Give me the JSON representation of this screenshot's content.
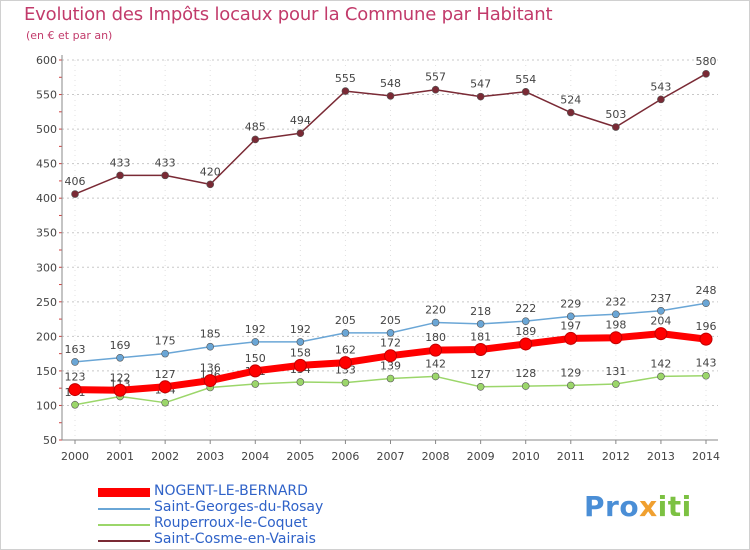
{
  "chart_data": {
    "type": "line",
    "title": "Evolution des Impôts locaux pour la Commune par Habitant",
    "subtitle": "(en € et par an)",
    "xlabel": "",
    "ylabel": "",
    "ylim": [
      50,
      600
    ],
    "yticks": [
      50,
      100,
      150,
      200,
      250,
      300,
      350,
      400,
      450,
      500,
      550,
      600
    ],
    "grid": "horizontal dashed",
    "x": [
      "2000",
      "2001",
      "2002",
      "2003",
      "2004",
      "2005",
      "2006",
      "2007",
      "2008",
      "2009",
      "2010",
      "2011",
      "2012",
      "2013",
      "2014"
    ],
    "series": [
      {
        "name": "Saint-Cosme-en-Vairais",
        "color": "#7a2a35",
        "values": [
          406,
          433,
          433,
          420,
          485,
          494,
          555,
          548,
          557,
          547,
          554,
          524,
          503,
          543,
          580
        ],
        "labels": [
          "406",
          "433",
          "433",
          "420",
          "485",
          "494",
          "555",
          "548",
          "557",
          "547",
          "554",
          "524",
          "503",
          "543",
          "580"
        ]
      },
      {
        "name": "Saint-Georges-du-Rosay",
        "color": "#6aa6d6",
        "values": [
          163,
          169,
          175,
          185,
          192,
          192,
          205,
          205,
          220,
          218,
          222,
          229,
          232,
          237,
          248
        ],
        "labels": [
          "163",
          "169",
          "175",
          "185",
          "192",
          "192",
          "205",
          "205",
          "220",
          "218",
          "222",
          "229",
          "232",
          "237",
          "248"
        ]
      },
      {
        "name": "Rouperroux-le-Coquet",
        "color": "#9bd66a",
        "values": [
          101,
          113,
          104,
          126,
          131,
          134,
          133,
          139,
          142,
          127,
          128,
          129,
          131,
          142,
          143
        ],
        "labels": [
          "101",
          "113",
          "104",
          "126",
          "131",
          "134",
          "133",
          "139",
          "142",
          "127",
          "128",
          "129",
          "131",
          "142",
          "143"
        ]
      },
      {
        "name": "NOGENT-LE-BERNARD",
        "color": "#ff0000",
        "values": [
          123,
          122,
          127,
          136,
          150,
          158,
          162,
          172,
          180,
          181,
          189,
          197,
          198,
          204,
          196
        ],
        "labels": [
          "123",
          "122",
          "127",
          "136",
          "150",
          "158",
          "162",
          "172",
          "180",
          "181",
          "189",
          "197",
          "198",
          "204",
          "196"
        ]
      }
    ],
    "legend": [
      "NOGENT-LE-BERNARD",
      "Saint-Georges-du-Rosay",
      "Rouperroux-le-Coquet",
      "Saint-Cosme-en-Vairais"
    ]
  },
  "logo": {
    "part1": "Pro",
    "part2": "x",
    "part3": "iti"
  }
}
